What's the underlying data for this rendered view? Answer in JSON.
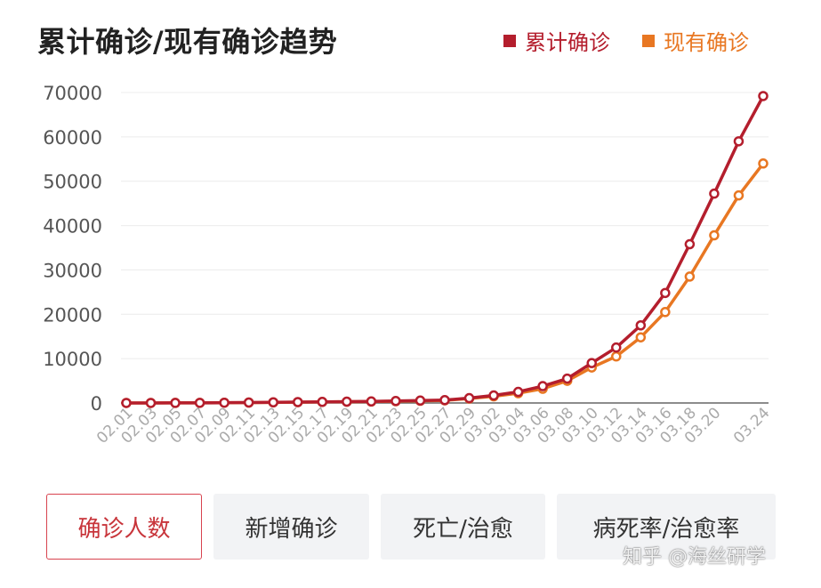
{
  "header": {
    "title": "累计确诊/现有确诊趋势"
  },
  "tabs": [
    {
      "label": "确诊人数",
      "active": true
    },
    {
      "label": "新增确诊",
      "active": false
    },
    {
      "label": "死亡/治愈",
      "active": false
    },
    {
      "label": "病死率/治愈率",
      "active": false
    }
  ],
  "watermark": "知乎 @海丝研学",
  "colors": {
    "cumulative": "#b41e2d",
    "current": "#e87722",
    "active_tab_border": "#d8434f",
    "grid": "#ececec"
  },
  "chart_data": {
    "type": "line",
    "title": "累计确诊/现有确诊趋势",
    "legend_position": "top-right",
    "grid": true,
    "x_tick_labels": [
      "02.01",
      "02.03",
      "02.05",
      "02.07",
      "02.09",
      "02.11",
      "02.13",
      "02.15",
      "02.17",
      "02.19",
      "02.21",
      "02.23",
      "02.25",
      "02.27",
      "02.29",
      "03.02",
      "03.04",
      "03.06",
      "03.08",
      "03.10",
      "03.12",
      "03.14",
      "03.16",
      "03.18",
      "03.20",
      "03.24"
    ],
    "y_ticks": [
      0,
      10000,
      20000,
      30000,
      40000,
      50000,
      60000,
      70000
    ],
    "ylim": [
      0,
      70000
    ],
    "x": [
      "02.01",
      "02.03",
      "02.05",
      "02.07",
      "02.09",
      "02.11",
      "02.13",
      "02.15",
      "02.17",
      "02.19",
      "02.21",
      "02.23",
      "02.25",
      "02.27",
      "02.29",
      "03.02",
      "03.04",
      "03.06",
      "03.08",
      "03.10",
      "03.12",
      "03.14",
      "03.16",
      "03.18",
      "03.20",
      "03.22",
      "03.24"
    ],
    "series": [
      {
        "name": "累计确诊",
        "values": [
          8,
          10,
          20,
          30,
          60,
          100,
          150,
          200,
          250,
          300,
          350,
          450,
          550,
          650,
          1100,
          1700,
          2500,
          3800,
          5500,
          9000,
          12500,
          17500,
          24800,
          35800,
          47200,
          59000,
          69200
        ]
      },
      {
        "name": "现有确诊",
        "values": [
          8,
          10,
          20,
          30,
          55,
          90,
          130,
          180,
          230,
          280,
          320,
          400,
          490,
          580,
          1000,
          1500,
          2200,
          3200,
          5000,
          8000,
          10500,
          14800,
          20500,
          28500,
          37800,
          46800,
          54000
        ]
      }
    ]
  }
}
